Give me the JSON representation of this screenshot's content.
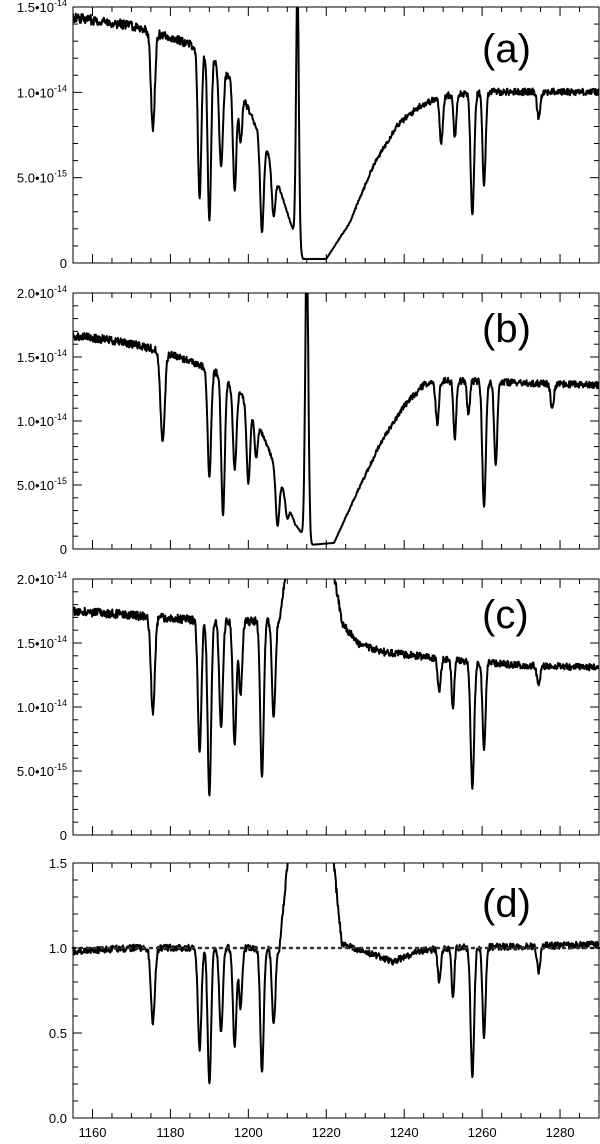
{
  "chart_data": [
    {
      "type": "line",
      "panel_label": "(a)",
      "xlim": [
        1155,
        1290
      ],
      "ylim": [
        0,
        1.5e-14
      ],
      "ytick_values": [
        0,
        5e-15,
        1e-14,
        1.5e-14
      ],
      "ytick_labels": [
        "0",
        "5.0•10^-15",
        "1.0•10^-14",
        "1.5•10^-14"
      ],
      "xtick_values": [
        1160,
        1180,
        1200,
        1220,
        1240,
        1260,
        1280
      ],
      "xtick_labels": [],
      "grid": false,
      "continuum_norm": 1.18e-14,
      "continuum": [
        [
          1155,
          1.22
        ],
        [
          1170,
          1.18
        ],
        [
          1180,
          1.12
        ],
        [
          1190,
          1.05
        ],
        [
          1198,
          0.85
        ],
        [
          1205,
          0.55
        ],
        [
          1210,
          0.25
        ],
        [
          1214,
          0.02
        ],
        [
          1220,
          0.02
        ],
        [
          1226,
          0.2
        ],
        [
          1232,
          0.48
        ],
        [
          1238,
          0.68
        ],
        [
          1244,
          0.78
        ],
        [
          1250,
          0.83
        ],
        [
          1260,
          0.85
        ],
        [
          1270,
          0.85
        ],
        [
          1290,
          0.85
        ]
      ],
      "absorption_lines": [
        [
          1175.5,
          0.42,
          0.5
        ],
        [
          1187.5,
          0.7,
          0.45
        ],
        [
          1190.0,
          0.8,
          0.45
        ],
        [
          1193.0,
          0.5,
          0.5
        ],
        [
          1196.5,
          0.6,
          0.45
        ],
        [
          1198.0,
          0.3,
          0.4
        ],
        [
          1203.5,
          0.75,
          0.45
        ],
        [
          1206.5,
          0.5,
          0.45
        ],
        [
          1249.5,
          0.28,
          0.4
        ],
        [
          1253.0,
          0.25,
          0.35
        ],
        [
          1257.5,
          0.72,
          0.45
        ],
        [
          1260.5,
          0.55,
          0.4
        ],
        [
          1274.5,
          0.15,
          0.4
        ]
      ],
      "emission_peak": [
        1212.6,
        1.3,
        0.35
      ],
      "noise_amplitude": 0.02
    },
    {
      "type": "line",
      "panel_label": "(b)",
      "xlim": [
        1155,
        1290
      ],
      "ylim": [
        0,
        2e-14
      ],
      "ytick_values": [
        0,
        5e-15,
        1e-14,
        1.5e-14,
        2e-14
      ],
      "ytick_labels": [
        "0",
        "5.0•10^-15",
        "1.0•10^-14",
        "1.5•10^-14",
        "2.0•10^-14"
      ],
      "xtick_values": [
        1160,
        1180,
        1200,
        1220,
        1240,
        1260,
        1280
      ],
      "xtick_labels": [],
      "grid": false,
      "continuum_norm": 1.6e-14,
      "continuum": [
        [
          1155,
          1.04
        ],
        [
          1165,
          1.02
        ],
        [
          1175,
          0.98
        ],
        [
          1185,
          0.92
        ],
        [
          1192,
          0.86
        ],
        [
          1200,
          0.72
        ],
        [
          1206,
          0.45
        ],
        [
          1212,
          0.12
        ],
        [
          1216,
          0.02
        ],
        [
          1222,
          0.03
        ],
        [
          1228,
          0.28
        ],
        [
          1234,
          0.52
        ],
        [
          1240,
          0.7
        ],
        [
          1245,
          0.8
        ],
        [
          1250,
          0.82
        ],
        [
          1260,
          0.82
        ],
        [
          1270,
          0.81
        ],
        [
          1290,
          0.8
        ]
      ],
      "absorption_lines": [
        [
          1178.0,
          0.45,
          0.55
        ],
        [
          1190.0,
          0.6,
          0.45
        ],
        [
          1193.5,
          0.8,
          0.45
        ],
        [
          1196.5,
          0.5,
          0.45
        ],
        [
          1200.0,
          0.55,
          0.45
        ],
        [
          1202.0,
          0.3,
          0.4
        ],
        [
          1207.5,
          0.7,
          0.45
        ],
        [
          1210.0,
          0.35,
          0.4
        ],
        [
          1248.5,
          0.25,
          0.4
        ],
        [
          1253.0,
          0.35,
          0.35
        ],
        [
          1256.5,
          0.2,
          0.35
        ],
        [
          1260.5,
          0.75,
          0.45
        ],
        [
          1263.5,
          0.5,
          0.4
        ],
        [
          1278.0,
          0.15,
          0.4
        ]
      ],
      "emission_peak": [
        1215.0,
        1.4,
        0.4
      ],
      "noise_amplitude": 0.02
    },
    {
      "type": "line",
      "panel_label": "(c)",
      "xlim": [
        1155,
        1290
      ],
      "ylim": [
        0,
        2e-14
      ],
      "ytick_values": [
        0,
        5e-15,
        1e-14,
        1.5e-14,
        2e-14
      ],
      "ytick_labels": [
        "0",
        "5.0•10^-15",
        "1.0•10^-14",
        "1.5•10^-14",
        "2.0•10^-14"
      ],
      "xtick_values": [
        1160,
        1180,
        1200,
        1220,
        1240,
        1260,
        1280
      ],
      "xtick_labels": [],
      "grid": false,
      "gap": [
        1210.5,
        1221.5
      ],
      "continuum_norm": 1.7e-14,
      "continuum": [
        [
          1155,
          1.03
        ],
        [
          1170,
          1.01
        ],
        [
          1185,
          0.99
        ],
        [
          1200,
          0.98
        ],
        [
          1208,
          0.99
        ],
        [
          1210.5,
          1.3
        ],
        [
          1221.5,
          1.25
        ],
        [
          1224,
          0.98
        ],
        [
          1228,
          0.88
        ],
        [
          1235,
          0.84
        ],
        [
          1245,
          0.82
        ],
        [
          1255,
          0.8
        ],
        [
          1270,
          0.78
        ],
        [
          1290,
          0.77
        ]
      ],
      "absorption_lines": [
        [
          1175.5,
          0.44,
          0.5
        ],
        [
          1187.5,
          0.62,
          0.45
        ],
        [
          1190.0,
          0.82,
          0.45
        ],
        [
          1193.0,
          0.5,
          0.45
        ],
        [
          1196.5,
          0.58,
          0.45
        ],
        [
          1198.0,
          0.35,
          0.4
        ],
        [
          1203.5,
          0.73,
          0.45
        ],
        [
          1206.5,
          0.45,
          0.45
        ],
        [
          1249.0,
          0.18,
          0.4
        ],
        [
          1252.5,
          0.27,
          0.35
        ],
        [
          1257.5,
          0.73,
          0.45
        ],
        [
          1260.5,
          0.5,
          0.4
        ],
        [
          1274.5,
          0.12,
          0.4
        ]
      ],
      "noise_amplitude": 0.02
    },
    {
      "type": "line",
      "panel_label": "(d)",
      "xlim": [
        1155,
        1290
      ],
      "ylim": [
        0,
        1.5
      ],
      "ytick_values": [
        0,
        0.5,
        1.0,
        1.5
      ],
      "ytick_labels": [
        "0.0",
        "0.5",
        "1.0",
        "1.5"
      ],
      "xtick_values": [
        1160,
        1180,
        1200,
        1220,
        1240,
        1260,
        1280
      ],
      "xtick_labels": [
        "1160",
        "1180",
        "1200",
        "1220",
        "1240",
        "1260",
        "1280"
      ],
      "grid": false,
      "gap": [
        1210.5,
        1221.5
      ],
      "reference_line": 1.0,
      "continuum_norm": 1.0,
      "continuum": [
        [
          1155,
          0.98
        ],
        [
          1170,
          1.0
        ],
        [
          1200,
          1.0
        ],
        [
          1208,
          1.0
        ],
        [
          1210.5,
          1.6
        ],
        [
          1221.5,
          1.6
        ],
        [
          1224,
          1.02
        ],
        [
          1230,
          0.98
        ],
        [
          1237,
          0.92
        ],
        [
          1244,
          0.98
        ],
        [
          1250,
          1.0
        ],
        [
          1290,
          1.02
        ]
      ],
      "absorption_lines": [
        [
          1175.5,
          0.44,
          0.5
        ],
        [
          1187.5,
          0.6,
          0.45
        ],
        [
          1190.0,
          0.8,
          0.45
        ],
        [
          1193.0,
          0.5,
          0.45
        ],
        [
          1196.5,
          0.58,
          0.45
        ],
        [
          1198.0,
          0.35,
          0.4
        ],
        [
          1203.5,
          0.73,
          0.45
        ],
        [
          1206.5,
          0.45,
          0.45
        ],
        [
          1249.0,
          0.2,
          0.4
        ],
        [
          1252.5,
          0.3,
          0.35
        ],
        [
          1257.5,
          0.76,
          0.45
        ],
        [
          1260.5,
          0.53,
          0.4
        ],
        [
          1274.5,
          0.15,
          0.4
        ]
      ],
      "noise_amplitude": 0.02
    }
  ]
}
